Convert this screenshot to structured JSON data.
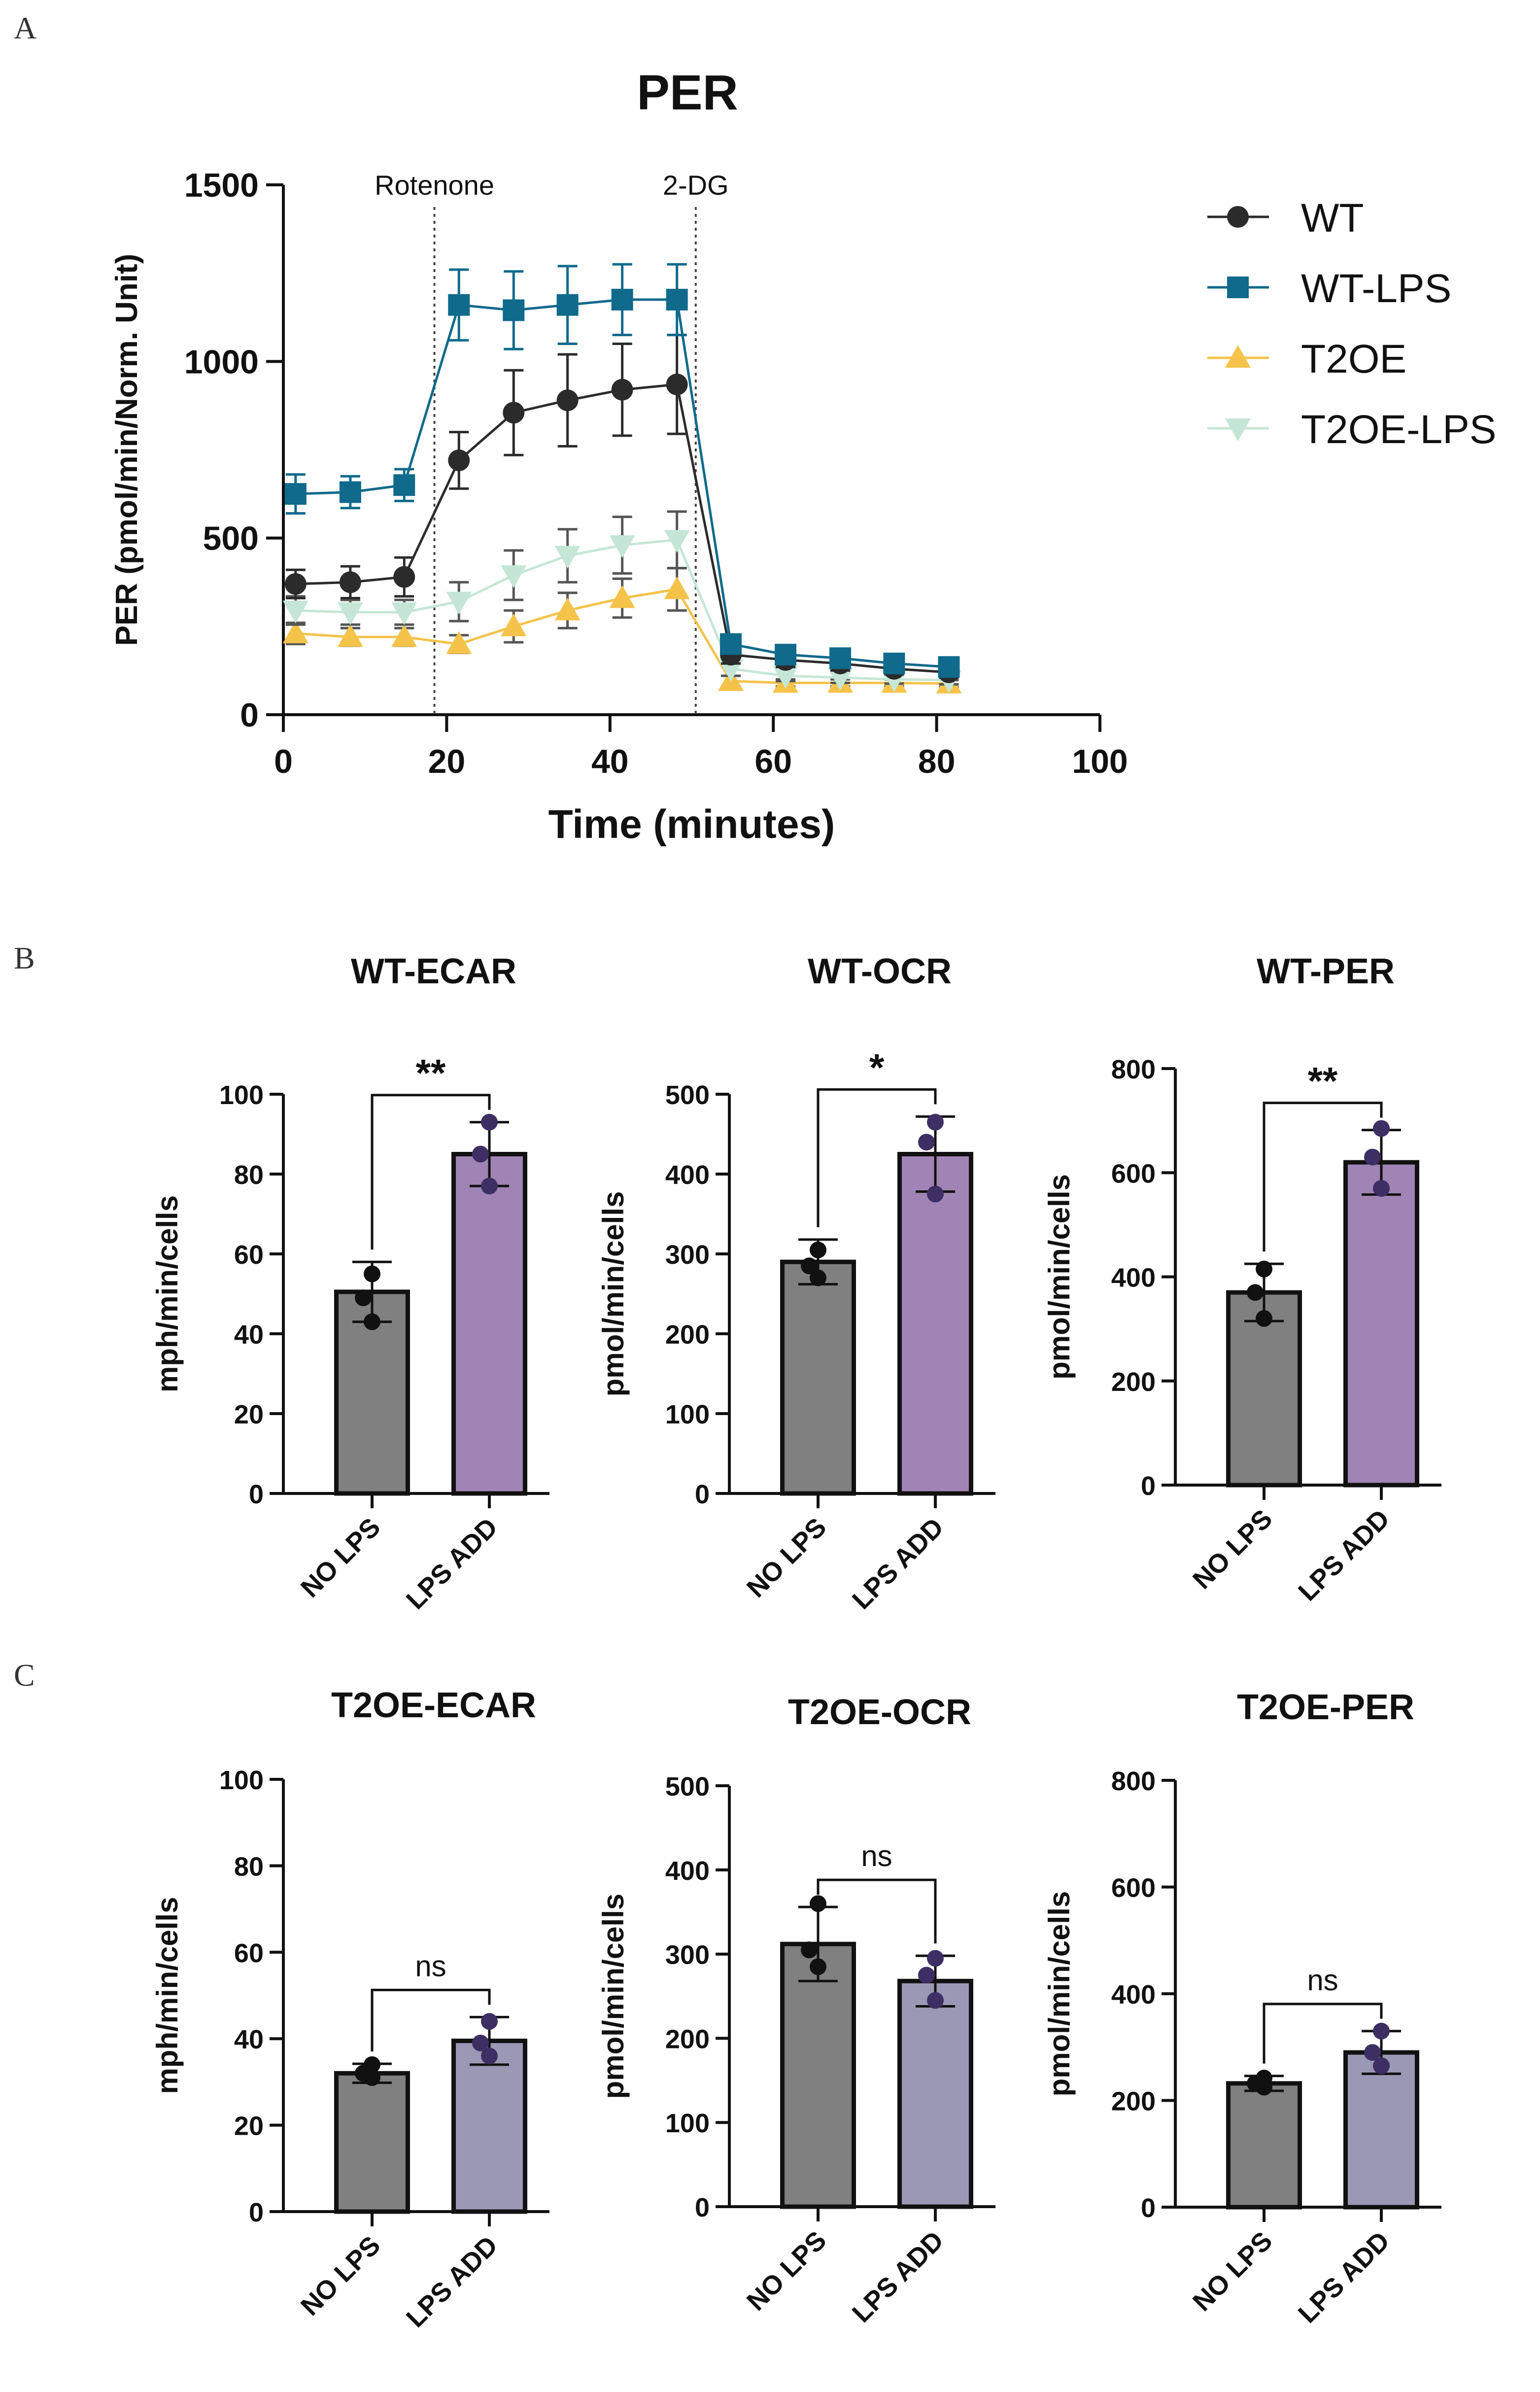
{
  "figure": {
    "panel_letters": {
      "A": "A",
      "B": "B",
      "C": "C"
    }
  },
  "chart_data": [
    {
      "id": "A",
      "type": "line",
      "title": "PER",
      "xlabel": "Time (minutes)",
      "ylabel": "PER (pmol/min/Norm. Unit)",
      "xlim": [
        0,
        100
      ],
      "ylim": [
        0,
        1500
      ],
      "xticks": [
        0,
        20,
        40,
        60,
        80,
        100
      ],
      "yticks": [
        0,
        500,
        1000,
        1500
      ],
      "legend_position": "right",
      "annotations": [
        {
          "text": "Rotenone",
          "x": 18.5
        },
        {
          "text": "2-DG",
          "x": 50.5
        }
      ],
      "x": [
        1.5,
        8.2,
        14.8,
        21.5,
        28.2,
        34.8,
        41.5,
        48.2,
        54.8,
        61.5,
        68.2,
        74.8,
        81.5
      ],
      "series": [
        {
          "name": "WT",
          "color": "#2b2b2b",
          "marker": "circle",
          "values": [
            370,
            375,
            390,
            720,
            855,
            890,
            920,
            935,
            170,
            155,
            145,
            130,
            120
          ],
          "errors": [
            40,
            45,
            55,
            80,
            120,
            130,
            130,
            140,
            25,
            20,
            20,
            15,
            15
          ]
        },
        {
          "name": "WT-LPS",
          "color": "#0f6a8c",
          "marker": "square",
          "values": [
            625,
            630,
            650,
            1160,
            1145,
            1160,
            1175,
            1175,
            200,
            170,
            160,
            145,
            135
          ],
          "errors": [
            55,
            45,
            45,
            100,
            110,
            110,
            100,
            100,
            25,
            20,
            20,
            15,
            15
          ]
        },
        {
          "name": "T2OE",
          "color": "#f5c34a",
          "marker": "triangle-up",
          "values": [
            230,
            220,
            220,
            200,
            250,
            295,
            330,
            355,
            95,
            90,
            90,
            90,
            88
          ],
          "errors": [
            30,
            25,
            25,
            25,
            45,
            50,
            55,
            60,
            15,
            10,
            10,
            10,
            10
          ]
        },
        {
          "name": "T2OE-LPS",
          "color": "#c5e6d6",
          "marker": "triangle-down",
          "values": [
            295,
            290,
            290,
            320,
            395,
            450,
            480,
            495,
            130,
            110,
            105,
            100,
            98
          ],
          "errors": [
            40,
            35,
            35,
            55,
            70,
            75,
            80,
            80,
            20,
            15,
            15,
            12,
            12
          ]
        }
      ]
    },
    {
      "id": "B1",
      "type": "bar",
      "title": "WT-ECAR",
      "ylabel": "mph/min/cells",
      "ylim": [
        0,
        100
      ],
      "yticks": [
        0,
        20,
        40,
        60,
        80,
        100
      ],
      "categories": [
        "NO LPS",
        "LPS ADD"
      ],
      "values": [
        50.5,
        85
      ],
      "errors": [
        7.5,
        8
      ],
      "points": [
        [
          55,
          49,
          43
        ],
        [
          93,
          85,
          77
        ]
      ],
      "bar_colors": [
        "#808080",
        "#a084b5"
      ],
      "point_colors": [
        "#111111",
        "#3d2f63"
      ],
      "significance": "**"
    },
    {
      "id": "B2",
      "type": "bar",
      "title": "WT-OCR",
      "ylabel": "pmol/min/cells",
      "ylim": [
        0,
        500
      ],
      "yticks": [
        0,
        100,
        200,
        300,
        400,
        500
      ],
      "categories": [
        "NO LPS",
        "LPS ADD"
      ],
      "values": [
        290,
        425
      ],
      "errors": [
        28,
        47
      ],
      "points": [
        [
          305,
          285,
          270
        ],
        [
          465,
          440,
          375
        ]
      ],
      "bar_colors": [
        "#808080",
        "#a084b5"
      ],
      "point_colors": [
        "#111111",
        "#3d2f63"
      ],
      "significance": "*"
    },
    {
      "id": "B3",
      "type": "bar",
      "title": "WT-PER",
      "ylabel": "pmol/min/cells",
      "ylim": [
        0,
        800
      ],
      "yticks": [
        0,
        200,
        400,
        600,
        800
      ],
      "categories": [
        "NO LPS",
        "LPS ADD"
      ],
      "values": [
        370,
        620
      ],
      "errors": [
        55,
        62
      ],
      "points": [
        [
          415,
          370,
          320
        ],
        [
          685,
          630,
          570
        ]
      ],
      "bar_colors": [
        "#808080",
        "#a084b5"
      ],
      "point_colors": [
        "#111111",
        "#3d2f63"
      ],
      "significance": "**"
    },
    {
      "id": "C1",
      "type": "bar",
      "title": "T2OE-ECAR",
      "ylabel": "mph/min/cells",
      "ylim": [
        0,
        100
      ],
      "yticks": [
        0,
        20,
        40,
        60,
        80,
        100
      ],
      "categories": [
        "NO LPS",
        "LPS ADD"
      ],
      "values": [
        32,
        39.5
      ],
      "errors": [
        2.2,
        5.5
      ],
      "points": [
        [
          34,
          32,
          31
        ],
        [
          44,
          39,
          36
        ]
      ],
      "bar_colors": [
        "#808080",
        "#9a98b4"
      ],
      "point_colors": [
        "#111111",
        "#3d2f63"
      ],
      "significance": "ns"
    },
    {
      "id": "C2",
      "type": "bar",
      "title": "T2OE-OCR",
      "ylabel": "pmol/min/cells",
      "ylim": [
        0,
        500
      ],
      "yticks": [
        0,
        100,
        200,
        300,
        400,
        500
      ],
      "categories": [
        "NO LPS",
        "LPS ADD"
      ],
      "values": [
        312,
        268
      ],
      "errors": [
        44,
        30
      ],
      "points": [
        [
          360,
          305,
          285
        ],
        [
          295,
          275,
          245
        ]
      ],
      "bar_colors": [
        "#808080",
        "#9a98b4"
      ],
      "point_colors": [
        "#111111",
        "#3d2f63"
      ],
      "significance": "ns"
    },
    {
      "id": "C3",
      "type": "bar",
      "title": "T2OE-PER",
      "ylabel": "pmol/min/cells",
      "ylim": [
        0,
        800
      ],
      "yticks": [
        0,
        200,
        400,
        600,
        800
      ],
      "categories": [
        "NO LPS",
        "LPS ADD"
      ],
      "values": [
        232,
        290
      ],
      "errors": [
        14,
        40
      ],
      "points": [
        [
          242,
          232,
          225
        ],
        [
          330,
          290,
          265
        ]
      ],
      "bar_colors": [
        "#808080",
        "#9a98b4"
      ],
      "point_colors": [
        "#111111",
        "#3d2f63"
      ],
      "significance": "ns"
    }
  ]
}
